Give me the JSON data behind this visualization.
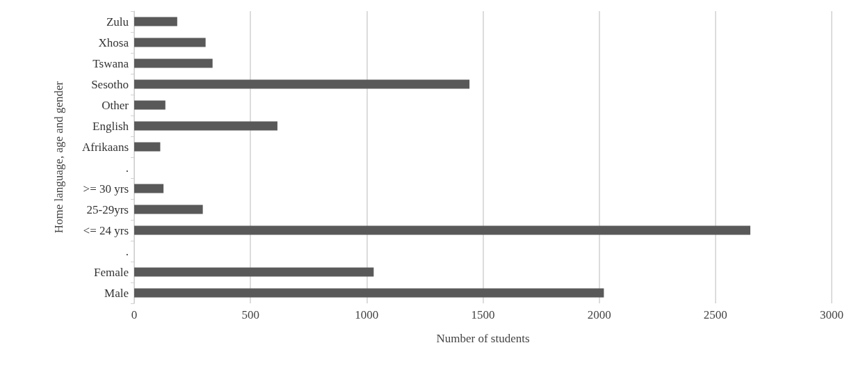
{
  "chart_data": {
    "type": "bar",
    "orientation": "horizontal",
    "xlabel": "Number of students",
    "ylabel": "Home language, age and gender",
    "categories": [
      "Zulu",
      "Xhosa",
      "Tswana",
      "Sesotho",
      "Other",
      "English",
      "Afrikaans",
      ".",
      ">= 30 yrs",
      "25-29yrs",
      "<= 24 yrs",
      ".",
      "Female",
      "Male"
    ],
    "values": [
      185,
      307,
      337,
      1442,
      134,
      616,
      112,
      null,
      126,
      295,
      2650,
      null,
      1030,
      2020
    ],
    "color": "#595959",
    "xlim": [
      0,
      3000
    ],
    "xticks": [
      0,
      500,
      1000,
      1500,
      2000,
      2500,
      3000
    ],
    "grid": "x"
  }
}
